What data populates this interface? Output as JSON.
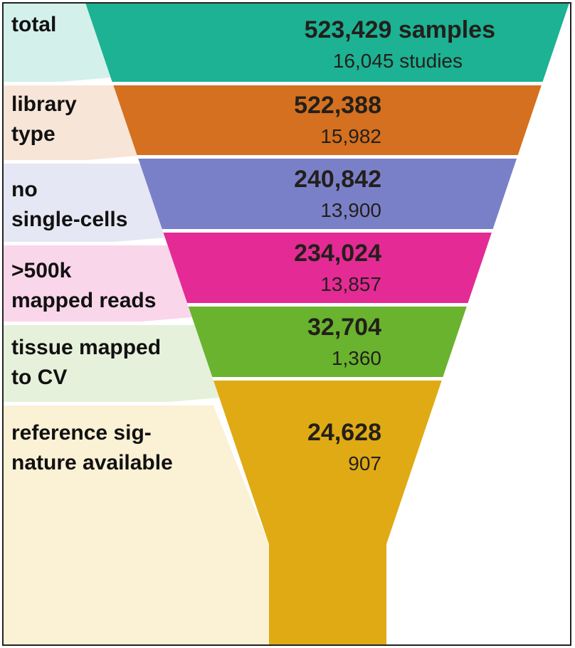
{
  "stages": [
    {
      "label_lines": [
        "total"
      ],
      "samples": "523,429",
      "samples_unit": "samples",
      "studies": "16,045",
      "studies_unit": "studies",
      "band_color": "#1cb293",
      "label_color": "#d3f0ea"
    },
    {
      "label_lines": [
        "library",
        "type"
      ],
      "samples": "522,388",
      "samples_unit": "",
      "studies": "15,982",
      "studies_unit": "",
      "band_color": "#d4701f",
      "label_color": "#f7e5d8"
    },
    {
      "label_lines": [
        "no",
        "single-cells"
      ],
      "samples": "240,842",
      "samples_unit": "",
      "studies": "13,900",
      "studies_unit": "",
      "band_color": "#7a80c8",
      "label_color": "#e6e7f4"
    },
    {
      "label_lines": [
        ">500k",
        "mapped reads"
      ],
      "samples": "234,024",
      "samples_unit": "",
      "studies": "13,857",
      "studies_unit": "",
      "band_color": "#e42a95",
      "label_color": "#fad6ea"
    },
    {
      "label_lines": [
        "tissue mapped",
        "to CV"
      ],
      "samples": "32,704",
      "samples_unit": "",
      "studies": "1,360",
      "studies_unit": "",
      "band_color": "#69b32f",
      "label_color": "#e5f1da"
    },
    {
      "label_lines": [
        "reference sig-",
        "nature available"
      ],
      "samples": "24,628",
      "samples_unit": "",
      "studies": "907",
      "studies_unit": "",
      "band_color": "#e0aa14",
      "label_color": "#fbf1d5"
    }
  ]
}
